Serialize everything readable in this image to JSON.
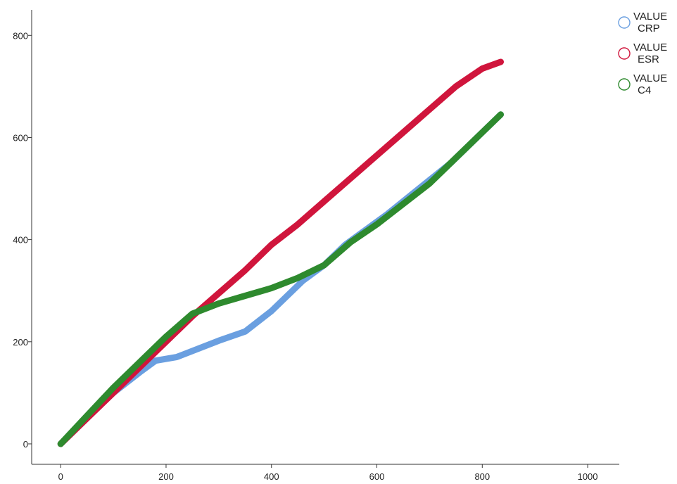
{
  "chart_data": {
    "type": "line",
    "title": "",
    "xlabel": "",
    "ylabel": "",
    "xlim": [
      -55,
      1060
    ],
    "ylim": [
      -40,
      850
    ],
    "xticks": [
      0,
      200,
      400,
      600,
      800,
      1000
    ],
    "yticks": [
      0,
      200,
      400,
      600,
      800
    ],
    "xtick_labels": [
      "0",
      "200",
      "400",
      "600",
      "800",
      "1000"
    ],
    "ytick_labels": [
      "0",
      "200",
      "400",
      "600",
      "800"
    ],
    "grid": false,
    "legend_position": "top-right",
    "series": [
      {
        "name": "CRP",
        "legend_lines": [
          "VALUE",
          "CRP"
        ],
        "color": "#6a9fe0",
        "x": [
          0,
          50,
          100,
          150,
          180,
          220,
          270,
          300,
          350,
          400,
          420,
          460,
          500,
          540,
          580,
          620,
          680,
          740,
          800,
          835
        ],
        "y": [
          0,
          50,
          100,
          140,
          163,
          170,
          190,
          202,
          220,
          260,
          280,
          320,
          350,
          390,
          420,
          450,
          500,
          550,
          610,
          645
        ]
      },
      {
        "name": "ESR",
        "legend_lines": [
          "VALUE",
          "ESR"
        ],
        "color": "#d0153c",
        "x": [
          0,
          50,
          100,
          150,
          200,
          250,
          300,
          350,
          400,
          450,
          500,
          550,
          600,
          650,
          700,
          750,
          800,
          835
        ],
        "y": [
          0,
          50,
          100,
          150,
          200,
          250,
          295,
          340,
          390,
          430,
          475,
          520,
          565,
          610,
          655,
          700,
          735,
          748
        ]
      },
      {
        "name": "C4",
        "legend_lines": [
          "VALUE",
          "C4"
        ],
        "color": "#2e8a2e",
        "x": [
          0,
          50,
          100,
          150,
          200,
          250,
          300,
          350,
          400,
          450,
          500,
          550,
          600,
          650,
          700,
          750,
          800,
          835
        ],
        "y": [
          0,
          55,
          110,
          160,
          210,
          255,
          275,
          290,
          305,
          325,
          350,
          395,
          430,
          470,
          510,
          560,
          610,
          645
        ]
      }
    ]
  }
}
